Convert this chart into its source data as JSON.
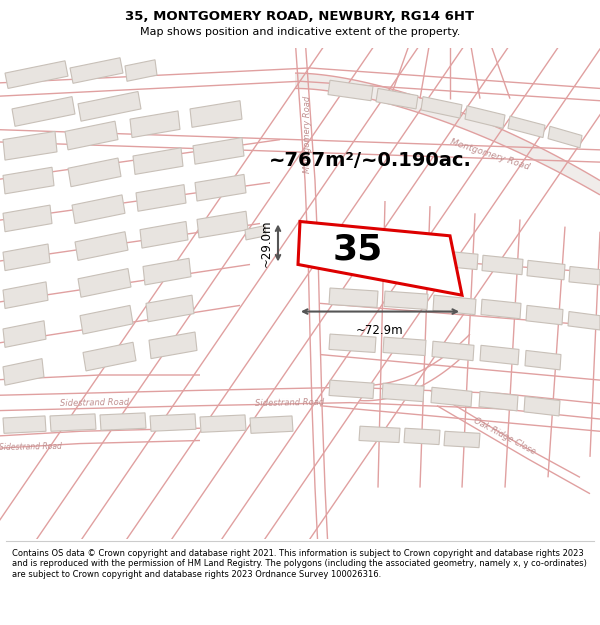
{
  "title_line1": "35, MONTGOMERY ROAD, NEWBURY, RG14 6HT",
  "title_line2": "Map shows position and indicative extent of the property.",
  "footer_text": "Contains OS data © Crown copyright and database right 2021. This information is subject to Crown copyright and database rights 2023 and is reproduced with the permission of HM Land Registry. The polygons (including the associated geometry, namely x, y co-ordinates) are subject to Crown copyright and database rights 2023 Ordnance Survey 100026316.",
  "area_text": "~767m²/~0.190ac.",
  "property_number": "35",
  "dim_width": "~72.9m",
  "dim_height": "~29.0m",
  "map_bg": "#f7f4f2",
  "road_line_color": "#e8a8a8",
  "road_fill_color": "#f0e0e0",
  "building_fill": "#e8e4e0",
  "building_edge": "#c8c0b8",
  "highlight_color": "#dd0000",
  "dim_color": "#555555",
  "road_label_color": "#c08080",
  "title_bg": "#ffffff",
  "footer_bg": "#ffffff"
}
